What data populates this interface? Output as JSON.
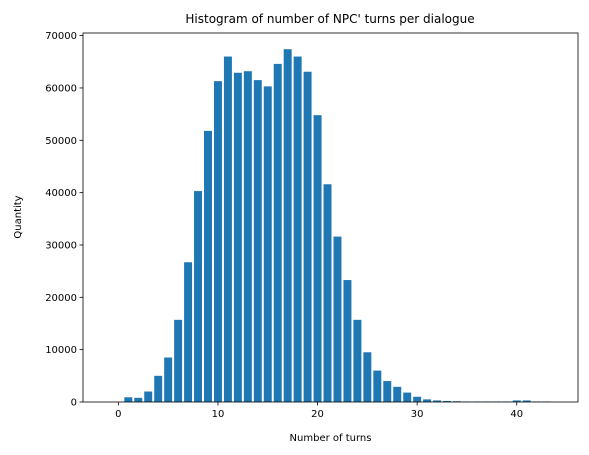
{
  "chart_data": {
    "type": "bar",
    "title": "Histogram of number of NPC' turns per dialogue",
    "xlabel": "Number of turns",
    "ylabel": "Quantity",
    "xlim": [
      -3.55,
      46.15
    ],
    "ylim": [
      0,
      70500
    ],
    "xticks": [
      0,
      10,
      20,
      30,
      40
    ],
    "yticks": [
      0,
      10000,
      20000,
      30000,
      40000,
      50000,
      60000,
      70000
    ],
    "bar_color": "#1f77b4",
    "bar_width": 0.8,
    "grid": false,
    "legend": "none",
    "x": [
      1,
      2,
      3,
      4,
      5,
      6,
      7,
      8,
      9,
      10,
      11,
      12,
      13,
      14,
      15,
      16,
      17,
      18,
      19,
      20,
      21,
      22,
      23,
      24,
      25,
      26,
      27,
      28,
      29,
      30,
      31,
      32,
      33,
      34,
      35,
      36,
      37,
      38,
      39,
      40,
      41,
      42,
      43
    ],
    "values": [
      900,
      800,
      2000,
      5000,
      8500,
      15700,
      26700,
      40300,
      51800,
      61300,
      66000,
      62900,
      63200,
      61500,
      60300,
      64600,
      67400,
      66000,
      63100,
      54800,
      41600,
      31600,
      23300,
      15700,
      9500,
      6000,
      4000,
      2900,
      1800,
      1000,
      500,
      300,
      200,
      150,
      100,
      100,
      100,
      100,
      100,
      300,
      300,
      100,
      100
    ]
  }
}
